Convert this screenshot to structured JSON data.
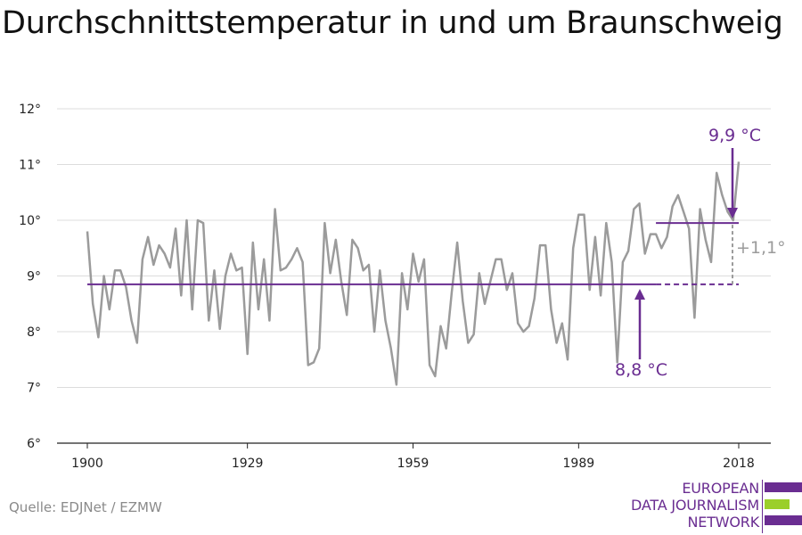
{
  "chart_data": {
    "type": "line",
    "title": "Durchschnittstemperatur in und um Braunschweig",
    "xlabel": "",
    "ylabel": "",
    "xlim": [
      1900,
      2018
    ],
    "ylim": [
      6,
      12
    ],
    "x_ticks": [
      1900,
      1929,
      1959,
      1989,
      2018
    ],
    "x_tick_labels": [
      "1900",
      "1929",
      "1959",
      "1989",
      "2018"
    ],
    "y_ticks": [
      6,
      7,
      8,
      9,
      10,
      11,
      12
    ],
    "y_tick_labels": [
      "6°",
      "7°",
      "8°",
      "9°",
      "10°",
      "11°",
      "12°"
    ],
    "grid": true,
    "series": [
      {
        "color": "#9b9b9b",
        "x_start": 1900,
        "values": [
          9.8,
          8.5,
          7.9,
          9.0,
          8.4,
          9.1,
          9.1,
          8.8,
          8.2,
          7.8,
          9.3,
          9.7,
          9.2,
          9.55,
          9.4,
          9.15,
          9.85,
          8.65,
          10.0,
          8.4,
          10.0,
          9.95,
          8.2,
          9.1,
          8.05,
          9.0,
          9.4,
          9.1,
          9.15,
          7.6,
          9.6,
          8.4,
          9.3,
          8.2,
          10.2,
          9.1,
          9.15,
          9.3,
          9.5,
          9.25,
          7.4,
          7.45,
          7.7,
          9.95,
          9.05,
          9.65,
          8.9,
          8.3,
          9.65,
          9.5,
          9.1,
          9.2,
          8.0,
          9.1,
          8.2,
          7.7,
          7.05,
          9.05,
          8.4,
          9.4,
          8.9,
          9.3,
          7.4,
          7.2,
          8.1,
          7.7,
          8.7,
          9.6,
          8.55,
          7.8,
          7.95,
          9.05,
          8.5,
          8.9,
          9.3,
          9.3,
          8.75,
          9.05,
          8.15,
          8.0,
          8.1,
          8.6,
          9.55,
          9.55,
          8.4,
          7.8,
          8.15,
          7.5,
          9.5,
          10.1,
          10.1,
          8.75,
          9.7,
          8.65,
          9.95,
          9.25,
          7.45,
          9.25,
          9.45,
          10.2,
          10.3,
          9.4,
          9.75,
          9.75,
          9.5,
          9.7,
          10.25,
          10.45,
          10.15,
          9.85,
          8.25,
          10.2,
          9.65,
          9.25,
          10.85,
          10.45,
          10.15,
          10.0,
          11.05
        ]
      }
    ],
    "reference_lines": [
      {
        "label": "8,8 °C",
        "value": 8.85,
        "from": 1900,
        "to": 2003,
        "dashed_to": 2018,
        "color": "#6a2d91"
      },
      {
        "label": "9,9 °C",
        "value": 9.95,
        "from": 2003,
        "to": 2018,
        "color": "#6a2d91"
      }
    ],
    "difference_label": "+1,1°"
  },
  "source": "Quelle: EDJNet / EZMW",
  "logo": {
    "lines": [
      "EUROPEAN",
      "DATA JOURNALISM",
      "NETWORK"
    ],
    "colors": {
      "purple": "#6a2d91",
      "green": "#9bcf2a"
    }
  }
}
